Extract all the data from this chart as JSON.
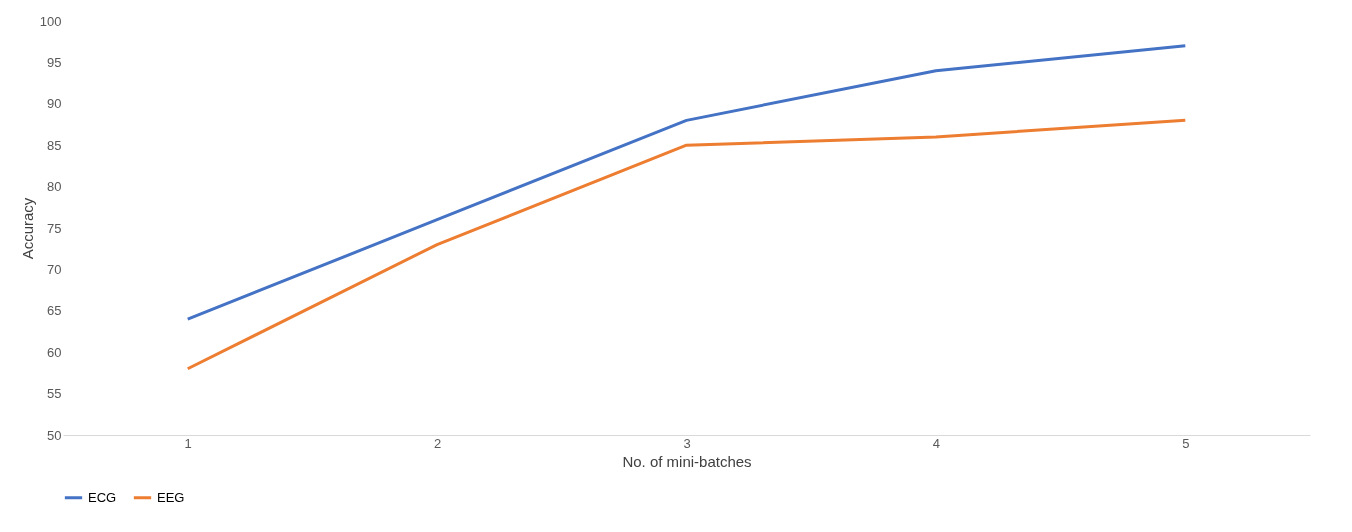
{
  "chart_data": {
    "type": "line",
    "xlabel": "No. of mini-batches",
    "ylabel": "Accuracy",
    "categories": [
      "1",
      "2",
      "3",
      "4",
      "5"
    ],
    "series": [
      {
        "name": "ECG",
        "color": "#4472c4",
        "values": [
          64,
          76,
          88,
          94,
          97
        ]
      },
      {
        "name": "EEG",
        "color": "#ed7d31",
        "values": [
          58,
          73,
          85,
          86,
          88
        ]
      }
    ],
    "ylim": [
      50,
      100
    ],
    "yticks": [
      50,
      55,
      60,
      65,
      70,
      75,
      80,
      85,
      90,
      95,
      100
    ],
    "grid": false,
    "legend": "bottom",
    "marker": "none",
    "line_style": "solid"
  }
}
